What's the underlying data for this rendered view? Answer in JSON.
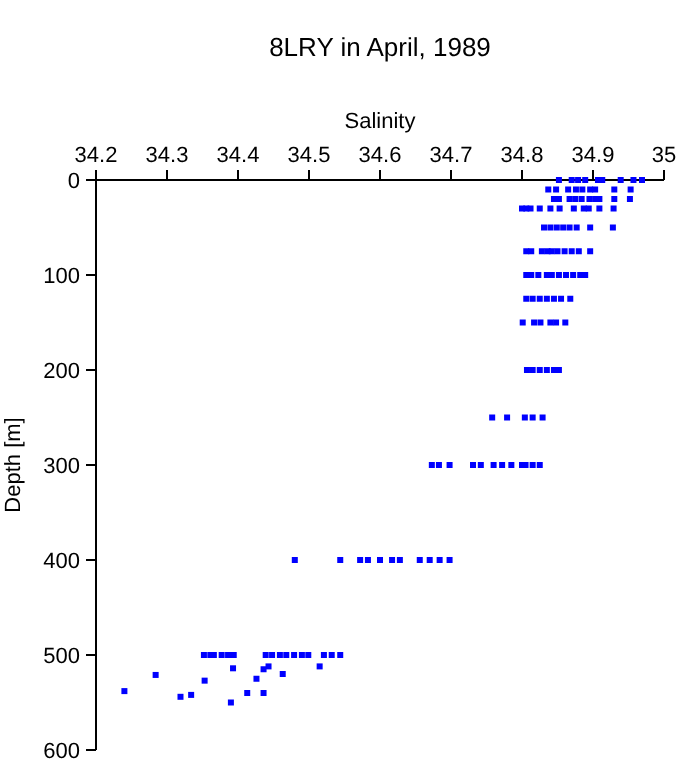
{
  "chart_data": {
    "type": "scatter",
    "title": "8LRY in April, 1989",
    "xlabel": "Salinity",
    "ylabel": "Depth [m]",
    "xlim": [
      34.2,
      35
    ],
    "xticks": [
      34.2,
      34.3,
      34.4,
      34.5,
      34.6,
      34.7,
      34.8,
      34.9,
      35
    ],
    "ylim": [
      600,
      0
    ],
    "yticks": [
      0,
      100,
      200,
      300,
      400,
      500,
      600
    ],
    "marker": "square",
    "grid": false,
    "series": [
      {
        "color": "#0000ff",
        "x": [
          34.852,
          34.87,
          34.879,
          34.889,
          34.907,
          34.913,
          34.939,
          34.957,
          34.969,
          34.837,
          34.848,
          34.865,
          34.876,
          34.885,
          34.896,
          34.903,
          34.93,
          34.953,
          34.845,
          34.852,
          34.867,
          34.875,
          34.884,
          34.895,
          34.903,
          34.909,
          34.93,
          34.952,
          34.8,
          34.806,
          34.812,
          34.825,
          34.84,
          34.853,
          34.873,
          34.887,
          34.894,
          34.909,
          34.929,
          34.831,
          34.84,
          34.849,
          34.858,
          34.867,
          34.877,
          34.896,
          34.928,
          34.806,
          34.813,
          34.828,
          34.836,
          34.842,
          34.85,
          34.86,
          34.87,
          34.88,
          34.896,
          34.806,
          34.813,
          34.823,
          34.835,
          34.842,
          34.852,
          34.862,
          34.872,
          34.882,
          34.889,
          34.806,
          34.815,
          34.825,
          34.835,
          34.845,
          34.855,
          34.868,
          34.801,
          34.817,
          34.826,
          34.84,
          34.848,
          34.861,
          34.807,
          34.815,
          34.825,
          34.835,
          34.845,
          34.852,
          34.758,
          34.779,
          34.804,
          34.815,
          34.829,
          34.673,
          34.683,
          34.698,
          34.731,
          34.742,
          34.76,
          34.772,
          34.785,
          34.8,
          34.805,
          34.815,
          34.825,
          34.48,
          34.544,
          34.572,
          34.583,
          34.6,
          34.617,
          34.628,
          34.656,
          34.67,
          34.684,
          34.698,
          34.352,
          34.361,
          34.366,
          34.377,
          34.386,
          34.394,
          34.439,
          34.448,
          34.459,
          34.468,
          34.479,
          34.49,
          34.499,
          34.521,
          34.532,
          34.544,
          34.24,
          34.284,
          34.319,
          34.334,
          34.353,
          34.393,
          34.39,
          34.413,
          34.426,
          34.436,
          34.443,
          34.436,
          34.463,
          34.515
        ],
        "values": [
          0,
          0,
          0,
          0,
          0,
          0,
          0,
          0,
          0,
          10,
          10,
          10,
          10,
          10,
          10,
          10,
          10,
          10,
          20,
          20,
          20,
          20,
          20,
          20,
          20,
          20,
          20,
          20,
          30,
          30,
          30,
          30,
          30,
          30,
          30,
          30,
          30,
          30,
          30,
          50,
          50,
          50,
          50,
          50,
          50,
          50,
          50,
          75,
          75,
          75,
          75,
          75,
          75,
          75,
          75,
          75,
          75,
          100,
          100,
          100,
          100,
          100,
          100,
          100,
          100,
          100,
          100,
          125,
          125,
          125,
          125,
          125,
          125,
          125,
          150,
          150,
          150,
          150,
          150,
          150,
          200,
          200,
          200,
          200,
          200,
          200,
          250,
          250,
          250,
          250,
          250,
          300,
          300,
          300,
          300,
          300,
          300,
          300,
          300,
          300,
          300,
          300,
          300,
          400,
          400,
          400,
          400,
          400,
          400,
          400,
          400,
          400,
          400,
          400,
          500,
          500,
          500,
          500,
          500,
          500,
          500,
          500,
          500,
          500,
          500,
          500,
          500,
          500,
          500,
          500,
          538,
          521,
          544,
          542,
          527,
          514,
          550,
          540,
          525,
          515,
          512,
          540,
          520,
          512
        ]
      }
    ]
  }
}
